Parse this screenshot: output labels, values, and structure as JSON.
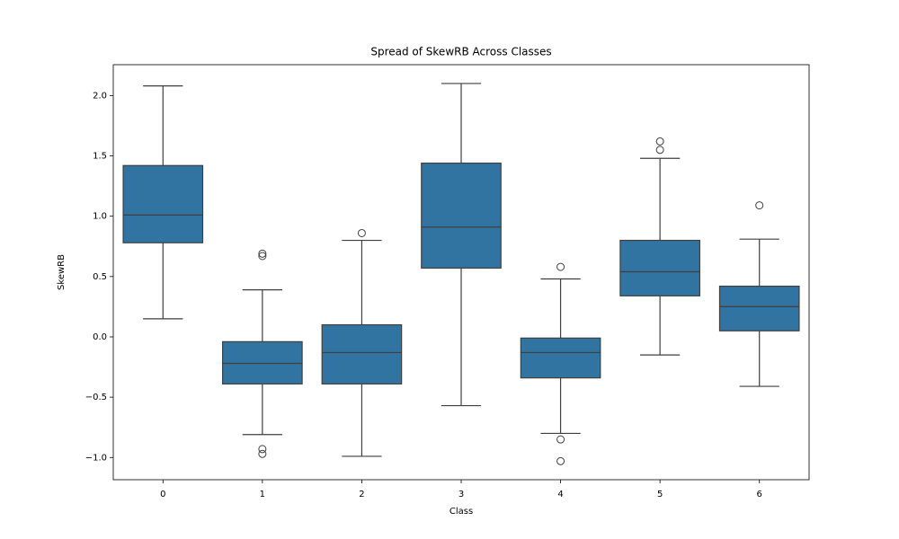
{
  "chart_data": {
    "type": "box",
    "title": "Spread of SkewRB Across Classes",
    "x_label": "Class",
    "y_label": "SkewRB",
    "categories": [
      "0",
      "1",
      "2",
      "3",
      "4",
      "5",
      "6"
    ],
    "color": "#3274a1",
    "boxes": [
      {
        "whisker_low": 0.15,
        "q1": 0.78,
        "median": 1.01,
        "q3": 1.42,
        "whisker_high": 2.08,
        "outliers": []
      },
      {
        "whisker_low": -0.81,
        "q1": -0.39,
        "median": -0.22,
        "q3": -0.04,
        "whisker_high": 0.39,
        "outliers": [
          0.69,
          0.67,
          -0.93,
          -0.97
        ]
      },
      {
        "whisker_low": -0.99,
        "q1": -0.39,
        "median": -0.13,
        "q3": 0.1,
        "whisker_high": 0.8,
        "outliers": [
          0.86
        ]
      },
      {
        "whisker_low": -0.57,
        "q1": 0.57,
        "median": 0.91,
        "q3": 1.44,
        "whisker_high": 2.1,
        "outliers": []
      },
      {
        "whisker_low": -0.8,
        "q1": -0.34,
        "median": -0.13,
        "q3": -0.01,
        "whisker_high": 0.48,
        "outliers": [
          0.58,
          -0.85,
          -1.03
        ]
      },
      {
        "whisker_low": -0.15,
        "q1": 0.34,
        "median": 0.54,
        "q3": 0.8,
        "whisker_high": 1.48,
        "outliers": [
          1.62,
          1.55
        ]
      },
      {
        "whisker_low": -0.41,
        "q1": 0.05,
        "median": 0.25,
        "q3": 0.42,
        "whisker_high": 0.81,
        "outliers": [
          1.09
        ]
      }
    ],
    "ylim": [
      -1.184,
      2.256
    ],
    "yticks": [
      {
        "value": -1.0,
        "label": "−1.0"
      },
      {
        "value": -0.5,
        "label": "−0.5"
      },
      {
        "value": 0.0,
        "label": "0.0"
      },
      {
        "value": 0.5,
        "label": "0.5"
      },
      {
        "value": 1.0,
        "label": "1.0"
      },
      {
        "value": 1.5,
        "label": "1.5"
      },
      {
        "value": 2.0,
        "label": "2.0"
      }
    ],
    "grid": false
  }
}
